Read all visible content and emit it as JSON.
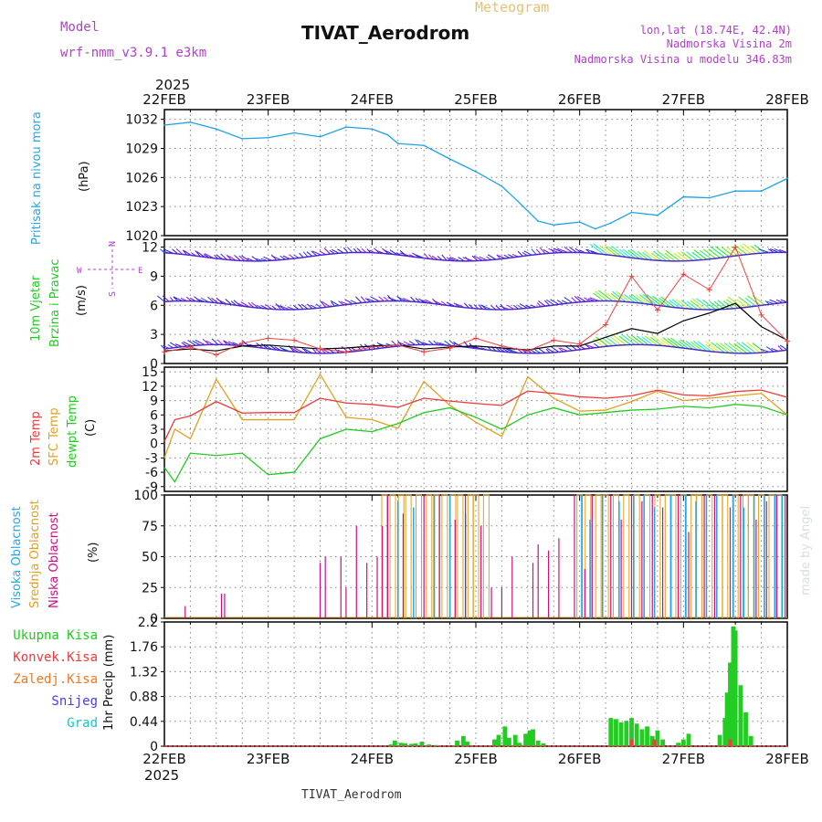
{
  "header": {
    "title": "TIVAT_Aerodrom",
    "subtitle": "Meteogram",
    "model_label": "Model",
    "model_name": "wrf-nmm_v3.9.1  e3km",
    "lonlat": "lon,lat (18.74E, 42.4N)",
    "altitude": "Nadmorska Visina 2m",
    "model_altitude": "Nadmorska Visina u modelu 346.83m",
    "credit": "made by Angel",
    "footer_station": "TIVAT_Aerodrom",
    "year_top": "2025",
    "year_bottom": "2025"
  },
  "colors": {
    "pressure": "#1ea0ee",
    "temp2m": "#ee3a3a",
    "sfc": "#e0a020",
    "dew": "#20cc20",
    "gust": "#ee4040",
    "wind_black": "#000000",
    "high_cloud": "#20a8ee",
    "mid_cloud": "#e0a020",
    "low_cloud": "#cc1080",
    "grid": "#888888",
    "purple": "#b040cc"
  },
  "chart_data": [
    {
      "id": "pressure",
      "type": "line",
      "ylabel_1": "Pritisak na nivou mora",
      "ylabel_2": "(hPa)",
      "yticks": [
        "1020",
        "1023",
        "1026",
        "1029",
        "1032"
      ],
      "ylim": [
        1020,
        1033
      ],
      "x_days": [
        "22FEB",
        "23FEB",
        "24FEB",
        "25FEB",
        "26FEB",
        "27FEB",
        "28FEB"
      ],
      "x": [
        0,
        0.25,
        0.5,
        0.75,
        1,
        1.25,
        1.5,
        1.75,
        2,
        2.15,
        2.25,
        2.5,
        2.75,
        3,
        3.25,
        3.4,
        3.6,
        3.75,
        4,
        4.15,
        4.3,
        4.5,
        4.75,
        5,
        5.25,
        5.5,
        5.75,
        6
      ],
      "values": [
        1031.4,
        1031.7,
        1031.0,
        1030.0,
        1030.1,
        1030.6,
        1030.2,
        1031.2,
        1031.0,
        1030.4,
        1029.5,
        1029.3,
        1027.9,
        1026.6,
        1025.1,
        1023.6,
        1021.5,
        1021.1,
        1021.4,
        1020.7,
        1021.3,
        1022.4,
        1022.1,
        1024.0,
        1023.9,
        1024.6,
        1024.6,
        1025.9
      ]
    },
    {
      "id": "wind",
      "type": "line",
      "ylabel_1": "10m Vjetar",
      "ylabel_2": "Brzina i Pravac",
      "ylabel_3": "(m/s)",
      "compass_n": "N",
      "compass_w": "W",
      "compass_e": "E",
      "compass_s": "S",
      "yticks": [
        "0",
        "3",
        "6",
        "9",
        "12"
      ],
      "ylim": [
        0,
        12.8
      ],
      "x": [
        0,
        0.25,
        0.5,
        0.75,
        1,
        1.25,
        1.5,
        1.75,
        2,
        2.25,
        2.5,
        2.75,
        3,
        3.25,
        3.5,
        3.75,
        4,
        4.25,
        4.5,
        4.75,
        5,
        5.25,
        5.5,
        5.75,
        6
      ],
      "speed": [
        1.3,
        1.5,
        1.3,
        1.8,
        1.9,
        1.7,
        1.5,
        1.6,
        1.8,
        1.9,
        1.5,
        1.7,
        1.8,
        1.6,
        1.4,
        1.8,
        1.8,
        2.7,
        3.6,
        3.1,
        4.4,
        5.2,
        6.2,
        3.8,
        2.4
      ],
      "gust": [
        1.2,
        1.7,
        0.9,
        2.1,
        2.6,
        2.4,
        1.5,
        1.2,
        1.7,
        1.9,
        1.2,
        1.6,
        2.6,
        1.8,
        1.3,
        2.4,
        2.0,
        4.0,
        9.0,
        5.5,
        9.2,
        7.6,
        12.0,
        5.0,
        2.3
      ],
      "barb_rows": [
        1.5,
        6.0,
        11.0
      ]
    },
    {
      "id": "temperature",
      "type": "line",
      "ylabel_1": "2m Temp",
      "ylabel_2": "SFC Temp",
      "ylabel_3": "dewpt Temp",
      "ylabel_4": "(C)",
      "yticks": [
        "-9",
        "-6",
        "-3",
        "0",
        "3",
        "6",
        "9",
        "12",
        "15"
      ],
      "ylim": [
        -10,
        16
      ],
      "x": [
        0,
        0.1,
        0.25,
        0.5,
        0.75,
        1,
        1.25,
        1.5,
        1.75,
        2,
        2.25,
        2.5,
        2.75,
        3,
        3.25,
        3.5,
        3.75,
        4,
        4.25,
        4.5,
        4.75,
        5,
        5.25,
        5.5,
        5.75,
        6
      ],
      "temp2m": [
        0.5,
        5.0,
        5.8,
        8.8,
        6.4,
        6.5,
        6.5,
        9.5,
        8.5,
        8.2,
        7.6,
        9.5,
        8.9,
        8.4,
        8.0,
        11.0,
        10.5,
        9.8,
        9.5,
        10.0,
        11.2,
        10.2,
        10.0,
        10.9,
        11.2,
        9.7
      ],
      "sfc": [
        -3.0,
        3.0,
        1.0,
        13.5,
        5.0,
        5.0,
        5.0,
        14.5,
        5.5,
        5.0,
        3.2,
        13.0,
        8.0,
        4.5,
        1.5,
        14.0,
        9.5,
        6.8,
        7.0,
        8.8,
        11.0,
        9.0,
        9.5,
        10.0,
        10.5,
        6.0
      ],
      "dew": [
        -5.0,
        -8.0,
        -2.0,
        -2.5,
        -2.0,
        -6.5,
        -6.0,
        1.0,
        3.0,
        2.5,
        4.2,
        6.5,
        7.5,
        5.5,
        3.0,
        6.0,
        7.5,
        6.0,
        6.5,
        7.0,
        7.2,
        7.8,
        7.5,
        8.2,
        7.8,
        6.0
      ]
    },
    {
      "id": "clouds",
      "type": "bar",
      "ylabel_1": "Visoka Oblacnost",
      "ylabel_2": "Srednja Oblacnost",
      "ylabel_3": "Niska Oblacnost",
      "ylabel_4": "(%)",
      "yticks": [
        "0",
        "25",
        "50",
        "75",
        "100"
      ],
      "ylim": [
        0,
        100
      ],
      "low_x": [
        0.2,
        0.55,
        0.58,
        1.5,
        1.55,
        1.7,
        1.75,
        1.85,
        1.95,
        2.05,
        2.1,
        2.15,
        2.3,
        2.5,
        2.65,
        2.8,
        2.9,
        3.05,
        3.15,
        3.25,
        3.35,
        3.55,
        3.6,
        3.7,
        3.8,
        3.95,
        4.05,
        4.12,
        4.3,
        4.4,
        4.5,
        4.6,
        4.7,
        4.8,
        4.95,
        5.05,
        5.2,
        5.3,
        5.45,
        5.55,
        5.7,
        5.8,
        5.9,
        5.98
      ],
      "low_v": [
        10,
        20,
        20,
        45,
        50,
        50,
        25,
        75,
        45,
        50,
        75,
        100,
        85,
        100,
        100,
        80,
        100,
        75,
        25,
        25,
        50,
        45,
        60,
        55,
        65,
        100,
        40,
        100,
        100,
        80,
        100,
        95,
        100,
        90,
        100,
        70,
        100,
        100,
        90,
        100,
        80,
        95,
        100,
        100
      ],
      "mid_x": [
        2.12,
        2.2,
        2.28,
        2.35,
        2.45,
        2.55,
        2.62,
        2.7,
        2.78,
        2.85,
        2.95,
        3.0,
        3.1,
        4.0,
        4.08,
        4.18,
        4.25,
        4.35,
        4.45,
        4.55,
        4.65,
        4.75,
        4.85,
        4.9,
        5.0,
        5.1,
        5.15,
        5.25,
        5.35,
        5.4,
        5.5,
        5.6,
        5.65,
        5.75,
        5.85,
        5.92
      ],
      "mid_v": [
        100,
        100,
        100,
        100,
        100,
        100,
        100,
        100,
        100,
        100,
        100,
        100,
        100,
        100,
        100,
        100,
        100,
        100,
        100,
        100,
        100,
        100,
        100,
        100,
        100,
        100,
        100,
        100,
        100,
        100,
        100,
        100,
        100,
        100,
        100,
        100
      ],
      "high_x": [
        2.15,
        2.25,
        2.4,
        2.6,
        2.75,
        2.9,
        4.02,
        4.1,
        4.22,
        4.38,
        4.52,
        4.62,
        4.72,
        4.88,
        5.02,
        5.12,
        5.22,
        5.32,
        5.48,
        5.58,
        5.68,
        5.78,
        5.88,
        5.95
      ],
      "high_v": [
        100,
        95,
        90,
        100,
        100,
        85,
        100,
        80,
        100,
        95,
        100,
        100,
        90,
        100,
        100,
        95,
        100,
        100,
        100,
        90,
        100,
        100,
        100,
        100
      ]
    },
    {
      "id": "precip",
      "type": "bar",
      "ylabel_1": "1hr Precip (mm)",
      "legend": [
        "Ukupna  Kisa",
        "Konvek.Kisa",
        "Zaledj.Kisa",
        "Snijeg",
        "Grad"
      ],
      "legend_colors": [
        "#20cc20",
        "#ee3a3a",
        "#f07820",
        "#4040ee",
        "#20c0c0"
      ],
      "yticks": [
        "0",
        "0.44",
        "0.88",
        "1.32",
        "1.76",
        "2.2"
      ],
      "ylim": [
        0,
        2.2
      ],
      "x": [
        2.18,
        2.22,
        2.28,
        2.32,
        2.38,
        2.42,
        2.48,
        2.55,
        2.62,
        2.82,
        2.88,
        2.92,
        3.18,
        3.22,
        3.28,
        3.32,
        3.38,
        3.42,
        3.48,
        3.52,
        3.55,
        3.6,
        3.65,
        4.3,
        4.35,
        4.4,
        4.45,
        4.5,
        4.55,
        4.6,
        4.65,
        4.7,
        4.75,
        4.8,
        4.95,
        5.0,
        5.05,
        5.35,
        5.4,
        5.42,
        5.45,
        5.48,
        5.5,
        5.55,
        5.6,
        5.65
      ],
      "values": [
        0.03,
        0.1,
        0.06,
        0.05,
        0.04,
        0.05,
        0.08,
        0.03,
        0.02,
        0.1,
        0.18,
        0.08,
        0.12,
        0.2,
        0.35,
        0.15,
        0.2,
        0.06,
        0.22,
        0.28,
        0.3,
        0.1,
        0.05,
        0.5,
        0.48,
        0.42,
        0.45,
        0.5,
        0.4,
        0.3,
        0.35,
        0.18,
        0.28,
        0.12,
        0.06,
        0.12,
        0.22,
        0.2,
        0.5,
        0.95,
        1.48,
        2.12,
        2.05,
        1.08,
        0.6,
        0.18
      ]
    }
  ]
}
